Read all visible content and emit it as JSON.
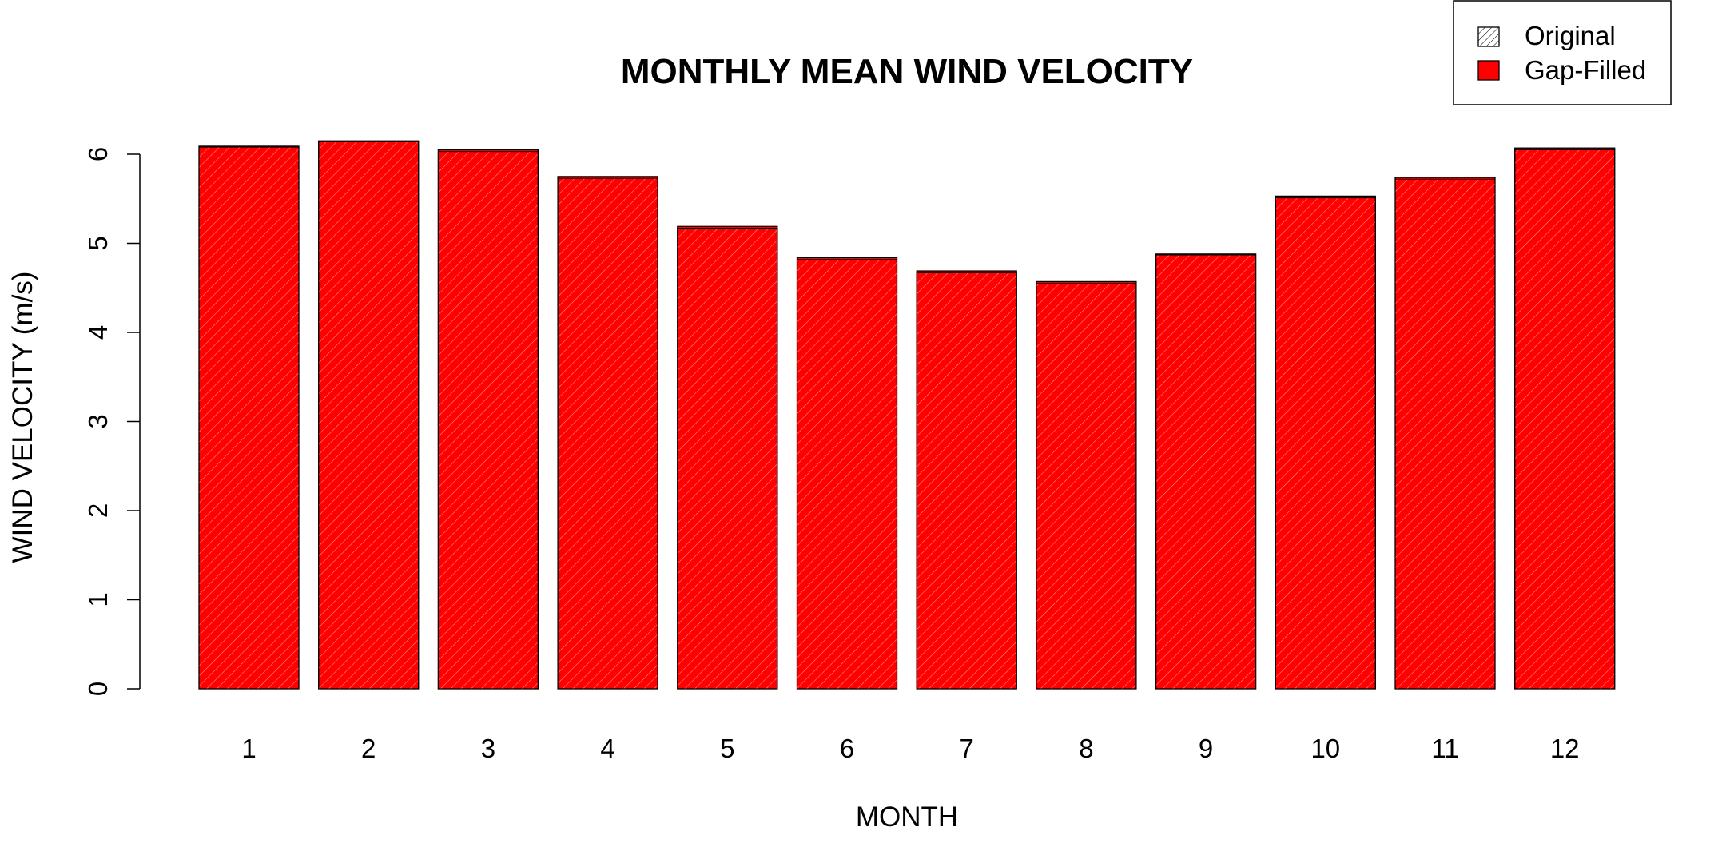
{
  "chart_data": {
    "type": "bar",
    "title": "MONTHLY MEAN WIND VELOCITY",
    "xlabel": "MONTH",
    "ylabel": "WIND VELOCITY (m/s)",
    "categories": [
      "1",
      "2",
      "3",
      "4",
      "5",
      "6",
      "7",
      "8",
      "9",
      "10",
      "11",
      "12"
    ],
    "series": [
      {
        "name": "Original",
        "values": [
          6.08,
          6.14,
          6.03,
          5.73,
          5.17,
          4.82,
          4.67,
          4.55,
          4.87,
          5.51,
          5.72,
          6.05
        ],
        "pattern": "hatch",
        "color": "#000000"
      },
      {
        "name": "Gap-Filled",
        "values": [
          6.09,
          6.15,
          6.05,
          5.75,
          5.19,
          4.84,
          4.69,
          4.57,
          4.88,
          5.53,
          5.74,
          6.07
        ],
        "color": "#ff0000"
      }
    ],
    "yticks": [
      "0",
      "1",
      "2",
      "3",
      "4",
      "5",
      "6"
    ],
    "ylim": [
      0,
      6.2
    ],
    "grid": false,
    "legend_position": "top-right"
  }
}
